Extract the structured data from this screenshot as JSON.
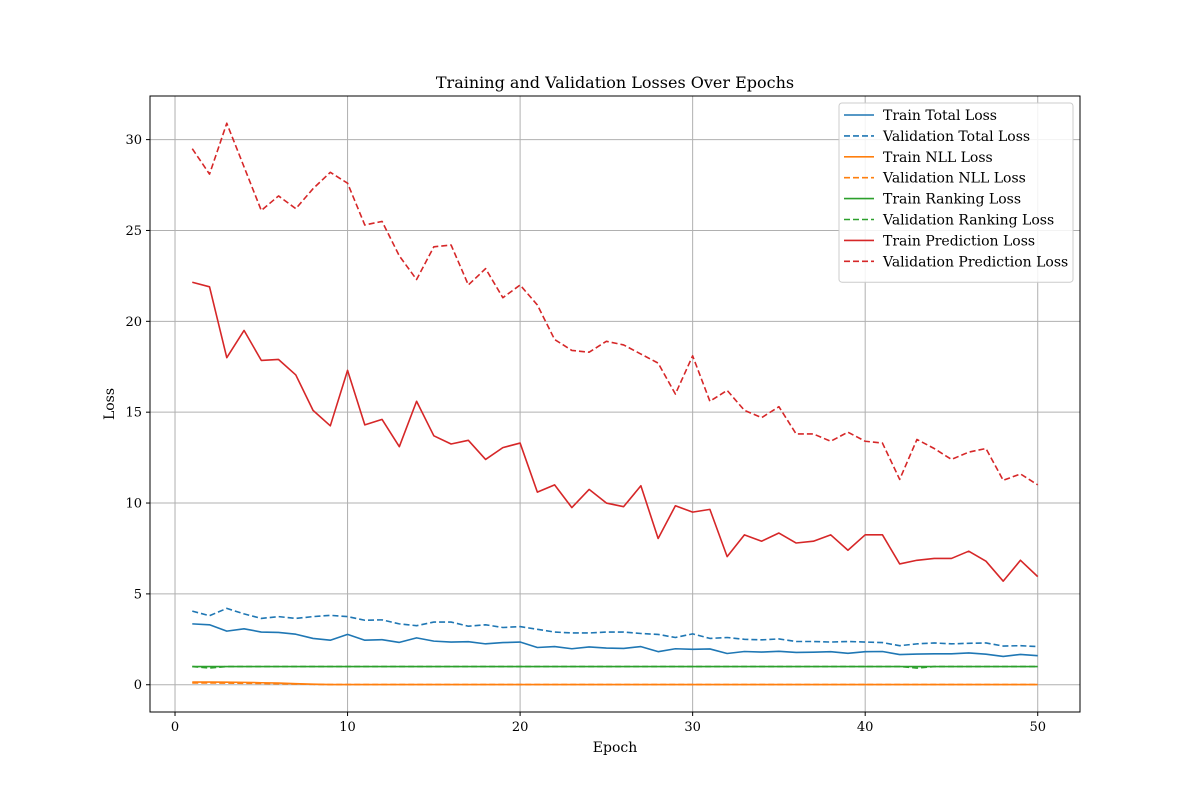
{
  "chart_data": {
    "type": "line",
    "title": "Training and Validation Losses Over Epochs",
    "xlabel": "Epoch",
    "ylabel": "Loss",
    "xlim": [
      -1.45,
      52.45
    ],
    "ylim": [
      -1.5,
      32.4
    ],
    "xticks": [
      0,
      10,
      20,
      30,
      40,
      50
    ],
    "yticks": [
      0,
      5,
      10,
      15,
      20,
      25,
      30
    ],
    "grid": true,
    "legend_position": "top-right",
    "x": [
      1,
      2,
      3,
      4,
      5,
      6,
      7,
      8,
      9,
      10,
      11,
      12,
      13,
      14,
      15,
      16,
      17,
      18,
      19,
      20,
      21,
      22,
      23,
      24,
      25,
      26,
      27,
      28,
      29,
      30,
      31,
      32,
      33,
      34,
      35,
      36,
      37,
      38,
      39,
      40,
      41,
      42,
      43,
      44,
      45,
      46,
      47,
      48,
      49,
      50
    ],
    "series": [
      {
        "name": "Train Total Loss",
        "color": "#1f77b4",
        "dashed": false,
        "values": [
          3.35,
          3.3,
          2.95,
          3.08,
          2.9,
          2.88,
          2.78,
          2.55,
          2.45,
          2.77,
          2.45,
          2.48,
          2.33,
          2.58,
          2.4,
          2.35,
          2.37,
          2.25,
          2.32,
          2.35,
          2.05,
          2.1,
          1.98,
          2.08,
          2.02,
          2.0,
          2.1,
          1.82,
          1.98,
          1.95,
          1.97,
          1.72,
          1.83,
          1.8,
          1.84,
          1.78,
          1.79,
          1.82,
          1.73,
          1.82,
          1.83,
          1.66,
          1.69,
          1.7,
          1.7,
          1.75,
          1.68,
          1.56,
          1.67,
          1.6
        ]
      },
      {
        "name": "Validation Total Loss",
        "color": "#1f77b4",
        "dashed": true,
        "values": [
          4.05,
          3.8,
          4.2,
          3.9,
          3.65,
          3.75,
          3.65,
          3.75,
          3.82,
          3.75,
          3.55,
          3.57,
          3.35,
          3.25,
          3.45,
          3.45,
          3.22,
          3.3,
          3.15,
          3.2,
          3.05,
          2.9,
          2.85,
          2.85,
          2.9,
          2.9,
          2.82,
          2.77,
          2.6,
          2.8,
          2.55,
          2.6,
          2.5,
          2.47,
          2.52,
          2.38,
          2.38,
          2.35,
          2.38,
          2.35,
          2.32,
          2.15,
          2.25,
          2.3,
          2.25,
          2.28,
          2.3,
          2.13,
          2.15,
          2.1
        ]
      },
      {
        "name": "Train NLL Loss",
        "color": "#ff7f0e",
        "dashed": false,
        "values": [
          0.15,
          0.15,
          0.14,
          0.13,
          0.11,
          0.09,
          0.06,
          0.03,
          0.01,
          0.01,
          0.01,
          0.01,
          0.01,
          0.01,
          0.01,
          0.01,
          0.01,
          0.01,
          0.01,
          0.01,
          0.01,
          0.01,
          0.01,
          0.01,
          0.01,
          0.01,
          0.01,
          0.01,
          0.01,
          0.01,
          0.01,
          0.01,
          0.01,
          0.01,
          0.01,
          0.01,
          0.01,
          0.01,
          0.01,
          0.01,
          0.01,
          0.01,
          0.01,
          0.01,
          0.01,
          0.01,
          0.01,
          0.01,
          0.01,
          0.01
        ]
      },
      {
        "name": "Validation NLL Loss",
        "color": "#ff7f0e",
        "dashed": true,
        "values": [
          0.1,
          0.1,
          0.09,
          0.08,
          0.07,
          0.05,
          0.04,
          0.02,
          0.01,
          0.01,
          0.01,
          0.01,
          0.01,
          0.01,
          0.01,
          0.01,
          0.01,
          0.01,
          0.01,
          0.01,
          0.01,
          0.01,
          0.01,
          0.01,
          0.01,
          0.01,
          0.01,
          0.01,
          0.01,
          0.01,
          0.01,
          0.01,
          0.01,
          0.01,
          0.01,
          0.01,
          0.01,
          0.01,
          0.01,
          0.01,
          0.01,
          0.01,
          0.01,
          0.01,
          0.01,
          0.01,
          0.01,
          0.01,
          0.01,
          0.01
        ]
      },
      {
        "name": "Train Ranking Loss",
        "color": "#2ca02c",
        "dashed": false,
        "values": [
          1,
          1,
          1,
          1,
          1,
          1,
          1,
          1,
          1,
          1,
          1,
          1,
          1,
          1,
          1,
          1,
          1,
          1,
          1,
          1,
          1,
          1,
          1,
          1,
          1,
          1,
          1,
          1,
          1,
          1,
          1,
          1,
          1,
          1,
          1,
          1,
          1,
          1,
          1,
          1,
          1,
          1,
          1,
          1,
          1,
          1,
          1,
          1,
          1,
          1
        ]
      },
      {
        "name": "Validation Ranking Loss",
        "color": "#2ca02c",
        "dashed": true,
        "values": [
          1,
          0.92,
          1,
          1,
          1,
          1,
          1,
          1,
          1,
          1,
          1,
          1,
          1,
          1,
          1,
          1,
          1,
          1,
          1,
          1,
          1,
          1,
          1,
          1,
          1,
          1,
          1,
          1,
          1,
          1,
          1,
          1,
          1,
          1,
          1,
          1,
          1,
          1,
          1,
          1,
          1,
          1,
          0.92,
          1,
          1,
          1,
          1,
          1,
          1,
          1
        ]
      },
      {
        "name": "Train Prediction Loss",
        "color": "#d62728",
        "dashed": false,
        "values": [
          22.15,
          21.9,
          18,
          19.5,
          17.85,
          17.9,
          17.05,
          15.1,
          14.25,
          17.3,
          14.3,
          14.6,
          13.1,
          15.6,
          13.7,
          13.25,
          13.45,
          12.4,
          13.05,
          13.3,
          10.6,
          11,
          9.75,
          10.75,
          10,
          9.8,
          10.95,
          8.05,
          9.85,
          9.5,
          9.65,
          7.05,
          8.25,
          7.9,
          8.35,
          7.8,
          7.9,
          8.25,
          7.4,
          8.25,
          8.25,
          6.65,
          6.85,
          6.95,
          6.95,
          7.35,
          6.8,
          5.7,
          6.85,
          5.95
        ]
      },
      {
        "name": "Validation Prediction Loss",
        "color": "#d62728",
        "dashed": true,
        "values": [
          29.5,
          28.1,
          30.9,
          28.5,
          26.1,
          26.9,
          26.2,
          27.3,
          28.2,
          27.6,
          25.3,
          25.5,
          23.6,
          22.3,
          24.1,
          24.2,
          22,
          22.9,
          21.3,
          22,
          20.9,
          19,
          18.4,
          18.3,
          18.9,
          18.7,
          18.2,
          17.7,
          16,
          18.1,
          15.6,
          16.2,
          15.1,
          14.7,
          15.3,
          13.8,
          13.8,
          13.4,
          13.9,
          13.4,
          13.3,
          11.3,
          13.5,
          13,
          12.4,
          12.8,
          13,
          11.25,
          11.6,
          11
        ]
      }
    ]
  }
}
